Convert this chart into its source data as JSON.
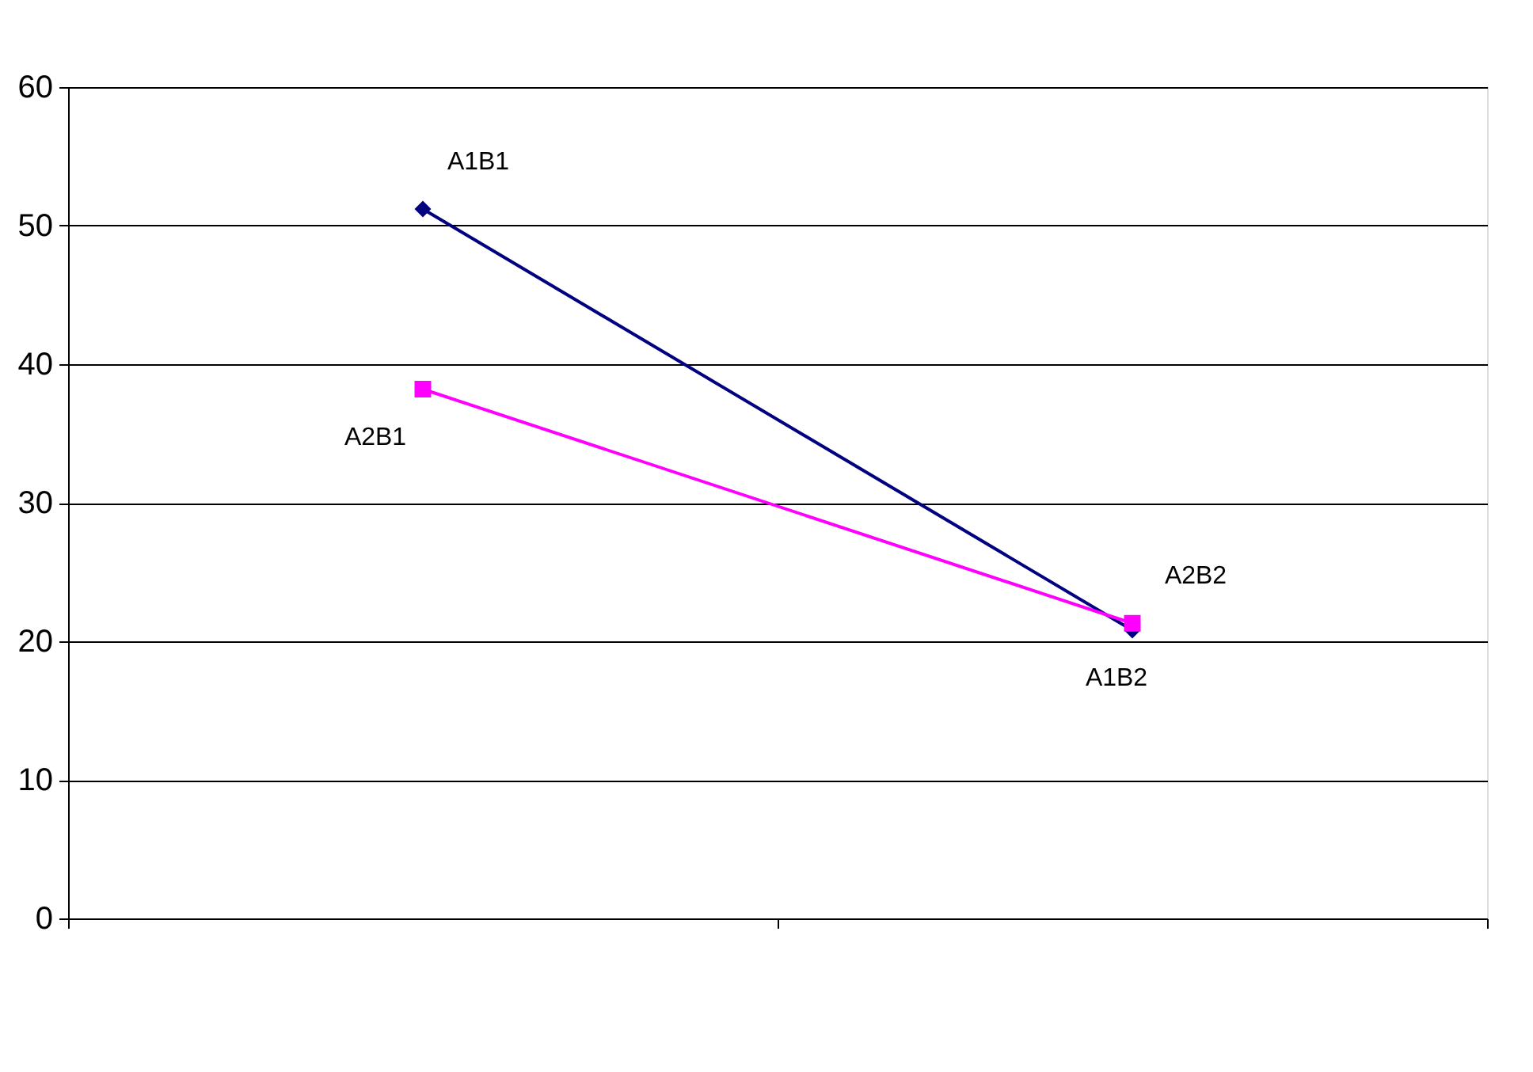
{
  "chart_data": {
    "type": "line",
    "categories": [
      null,
      null
    ],
    "series": [
      {
        "color": "#000080",
        "marker": "diamond",
        "line_style": "solid",
        "values": [
          51.2,
          20.8
        ],
        "value_labels": [
          "A1B1",
          "A1B2"
        ]
      },
      {
        "color": "#ff00ff",
        "marker": "square",
        "line_style": "solid",
        "values": [
          38.2,
          21.3
        ],
        "value_labels": [
          "A2B1",
          "A2B2"
        ]
      }
    ],
    "ylim": [
      0,
      60
    ],
    "yticks": [
      0,
      10,
      20,
      30,
      40,
      50,
      60
    ],
    "grid": "y"
  }
}
